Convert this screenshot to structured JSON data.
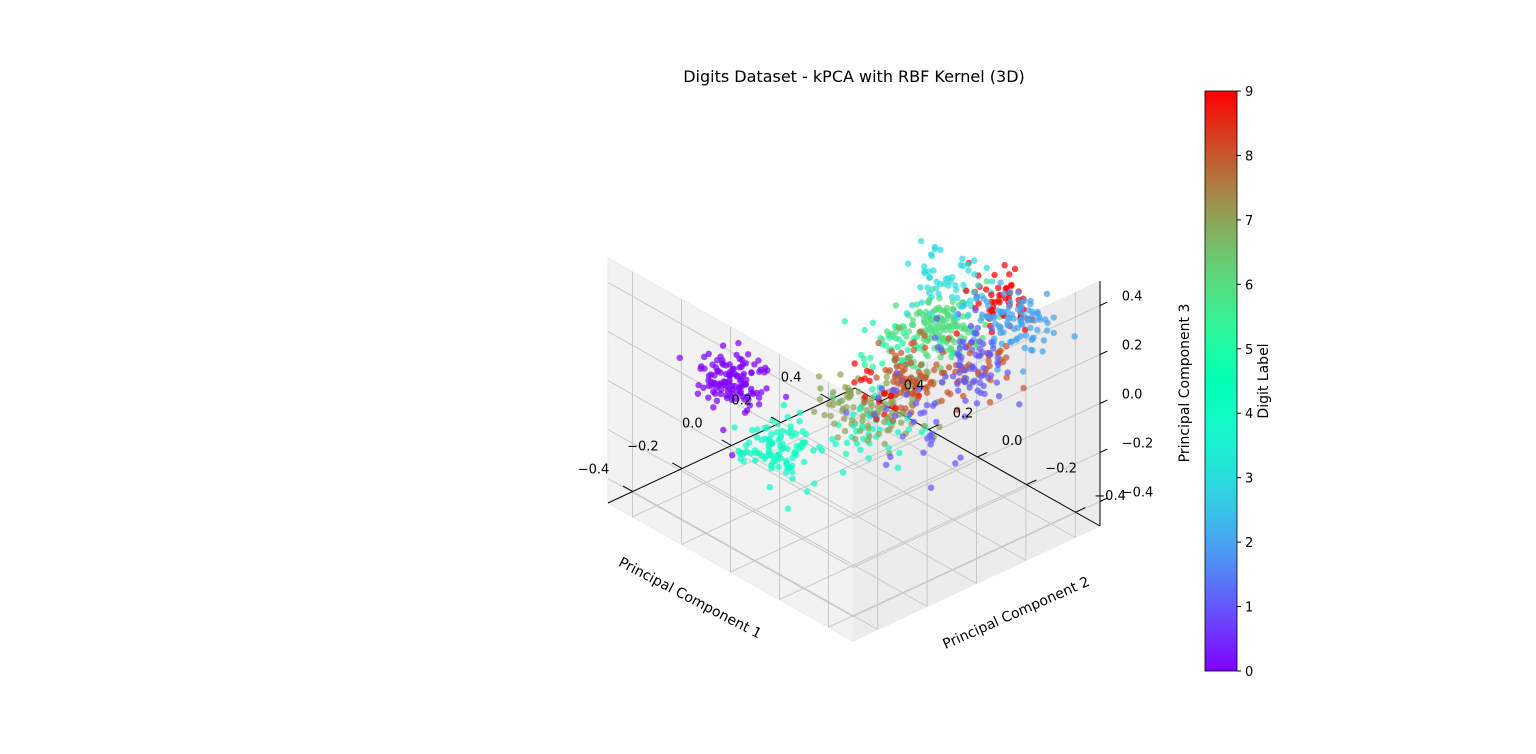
{
  "chart_data": {
    "type": "scatter",
    "projection": "3d",
    "title": "Digits Dataset - kPCA with RBF Kernel (3D)",
    "xlabel": "Principal Component 1",
    "ylabel": "Principal Component 2",
    "zlabel": "Principal Component 3",
    "xlim": [
      -0.5,
      0.5
    ],
    "ylim": [
      -0.5,
      0.5
    ],
    "zlim": [
      -0.5,
      0.5
    ],
    "xticks": [
      -0.4,
      -0.2,
      0.0,
      0.2,
      0.4
    ],
    "yticks": [
      -0.4,
      -0.2,
      0.0,
      0.2,
      0.4
    ],
    "zticks": [
      -0.4,
      -0.2,
      0.0,
      0.2,
      0.4
    ],
    "xtick_labels": [
      "−0.4",
      "−0.2",
      "0.0",
      "0.2",
      "0.4"
    ],
    "ytick_labels": [
      "−0.4",
      "−0.2",
      "0.0",
      "0.2",
      "0.4"
    ],
    "ztick_labels": [
      "−0.4",
      "−0.2",
      "0.0",
      "0.2",
      "0.4"
    ],
    "grid": true,
    "colormap": "rainbow",
    "colorbar": {
      "label": "Digit Label",
      "range": [
        0,
        9
      ],
      "ticks": [
        0,
        1,
        2,
        3,
        4,
        5,
        6,
        7,
        8,
        9
      ],
      "tick_labels": [
        "0",
        "1",
        "2",
        "3",
        "4",
        "5",
        "6",
        "7",
        "8",
        "9"
      ],
      "placement": "right"
    },
    "clusters": [
      {
        "label": 0,
        "center": [
          0.45,
          -0.05,
          -0.18
        ],
        "spread": [
          0.06,
          0.06,
          0.05
        ],
        "count": 120
      },
      {
        "label": 1,
        "center": [
          -0.45,
          0.05,
          0.3
        ],
        "spread": [
          0.05,
          0.05,
          0.05
        ],
        "count": 45
      },
      {
        "label": 1,
        "center": [
          -0.15,
          0.3,
          0.15
        ],
        "spread": [
          0.05,
          0.05,
          0.05
        ],
        "count": 30
      },
      {
        "label": 1,
        "center": [
          -0.25,
          0.0,
          0.05
        ],
        "spread": [
          0.1,
          0.1,
          0.08
        ],
        "count": 35
      },
      {
        "label": 2,
        "center": [
          -0.2,
          0.45,
          0.18
        ],
        "spread": [
          0.06,
          0.05,
          0.05
        ],
        "count": 95
      },
      {
        "label": 3,
        "center": [
          0.05,
          0.45,
          0.2
        ],
        "spread": [
          0.07,
          0.06,
          0.05
        ],
        "count": 60
      },
      {
        "label": 4,
        "center": [
          0.2,
          -0.1,
          -0.3
        ],
        "spread": [
          0.06,
          0.06,
          0.05
        ],
        "count": 100
      },
      {
        "label": 4,
        "center": [
          -0.05,
          0.0,
          -0.12
        ],
        "spread": [
          0.07,
          0.07,
          0.05
        ],
        "count": 45
      },
      {
        "label": 5,
        "center": [
          0.15,
          0.3,
          -0.05
        ],
        "spread": [
          0.07,
          0.07,
          0.05
        ],
        "count": 45
      },
      {
        "label": 6,
        "center": [
          0.05,
          0.4,
          0.05
        ],
        "spread": [
          0.06,
          0.07,
          0.05
        ],
        "count": 150
      },
      {
        "label": 7,
        "center": [
          -0.05,
          -0.02,
          -0.02
        ],
        "spread": [
          0.07,
          0.07,
          0.05
        ],
        "count": 80
      },
      {
        "label": 7,
        "center": [
          -0.15,
          0.1,
          0.05
        ],
        "spread": [
          0.06,
          0.06,
          0.05
        ],
        "count": 30
      },
      {
        "label": 8,
        "center": [
          -0.15,
          0.1,
          0.1
        ],
        "spread": [
          0.06,
          0.06,
          0.05
        ],
        "count": 90
      },
      {
        "label": 8,
        "center": [
          -0.25,
          0.3,
          0.1
        ],
        "spread": [
          0.05,
          0.05,
          0.05
        ],
        "count": 25
      },
      {
        "label": 9,
        "center": [
          -0.05,
          0.55,
          0.15
        ],
        "spread": [
          0.05,
          0.05,
          0.05
        ],
        "count": 55
      },
      {
        "label": 9,
        "center": [
          -0.1,
          0.05,
          0.05
        ],
        "spread": [
          0.05,
          0.05,
          0.04
        ],
        "count": 20
      }
    ]
  }
}
